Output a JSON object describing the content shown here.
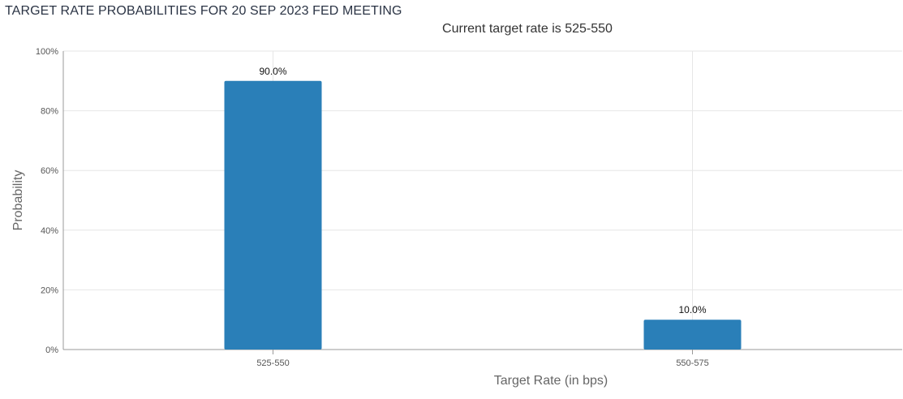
{
  "header": {
    "title": "TARGET RATE PROBABILITIES FOR 20 SEP 2023 FED MEETING",
    "subtitle": "Current target rate is 525-550"
  },
  "colors": {
    "bar": "#2a7fb8",
    "grid": "#e6e6e6",
    "axis": "#999999"
  },
  "chart_data": {
    "type": "bar",
    "categories": [
      "525-550",
      "550-575"
    ],
    "values": [
      90.0,
      10.0
    ],
    "data_labels": [
      "90.0%",
      "10.0%"
    ],
    "xlabel": "Target Rate (in bps)",
    "ylabel": "Probability",
    "ylim": [
      0,
      100
    ],
    "yticks": [
      {
        "value": 0,
        "label": "0%"
      },
      {
        "value": 20,
        "label": "20%"
      },
      {
        "value": 40,
        "label": "40%"
      },
      {
        "value": 60,
        "label": "60%"
      },
      {
        "value": 80,
        "label": "80%"
      },
      {
        "value": 100,
        "label": "100%"
      }
    ],
    "grid": true,
    "legend": "none"
  }
}
